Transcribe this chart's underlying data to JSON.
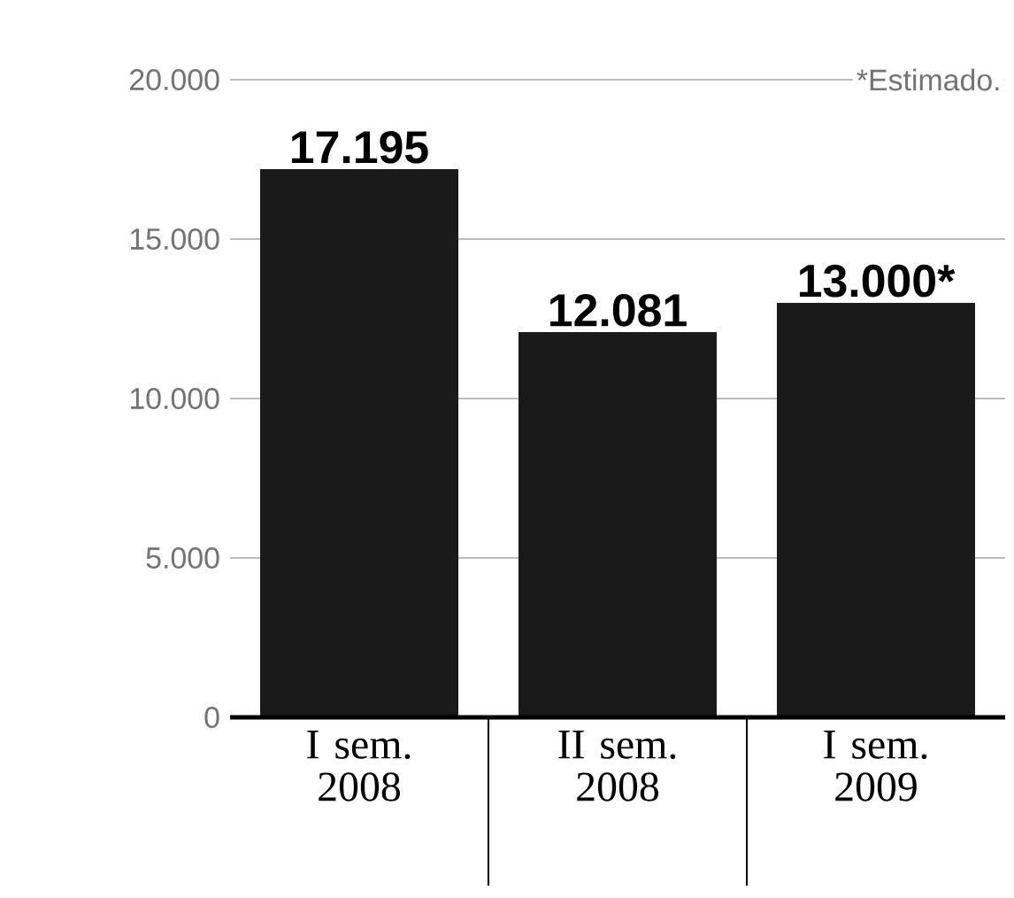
{
  "chart_data": {
    "type": "bar",
    "categories": [
      "I sem. 2008",
      "II sem. 2008",
      "I sem. 2009"
    ],
    "values": [
      17195,
      12081,
      13000
    ],
    "value_labels": [
      "17.195",
      "12.081",
      "13.000*"
    ],
    "color": "#1a1a1a",
    "ylim": [
      0,
      20000
    ],
    "yticks": [
      {
        "value": 0,
        "label": "0"
      },
      {
        "value": 5000,
        "label": "5.000"
      },
      {
        "value": 10000,
        "label": "10.000"
      },
      {
        "value": 15000,
        "label": "15.000"
      },
      {
        "value": 20000,
        "label": "20.000"
      }
    ],
    "grid": "y",
    "annotations": [
      "*Estimado."
    ]
  }
}
